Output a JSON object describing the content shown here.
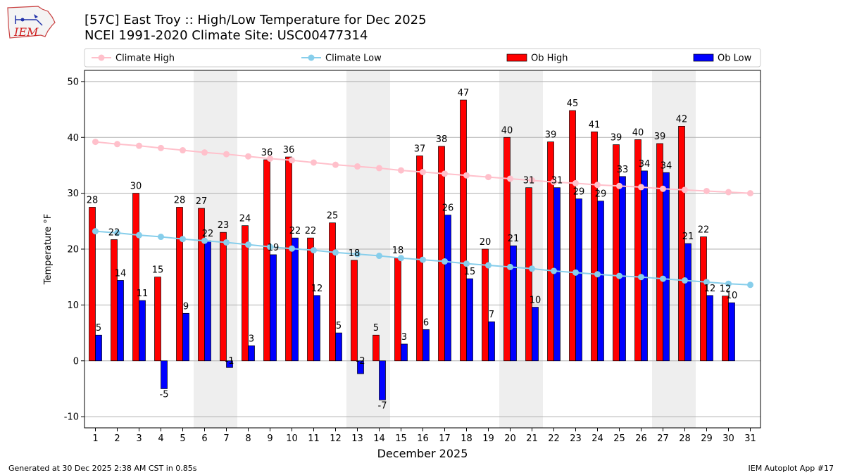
{
  "title_line1": "[57C] East Troy :: High/Low Temperature for Dec 2025",
  "title_line2": "NCEI 1991-2020 Climate Site: USC00477314",
  "logo_text": "IEM",
  "footer_left": "Generated at 30 Dec 2025 2:38 AM CST in 0.85s",
  "footer_right": "IEM Autoplot App #17",
  "colors": {
    "ob_high": "#ff0000",
    "ob_low": "#0000ff",
    "climate_high": "#ffc0cb",
    "climate_low": "#87ceeb",
    "weekend_shade": "#eeeeee",
    "grid": "#b0b0b0"
  },
  "chart_data": {
    "type": "bar",
    "xlabel": "December 2025",
    "ylabel": "Temperature °F",
    "ylim": [
      -12,
      52
    ],
    "yticks": [
      -10,
      0,
      10,
      20,
      30,
      40,
      50
    ],
    "grid": "horizontal",
    "legend_position": "top",
    "legend": [
      "Climate High",
      "Climate Low",
      "Ob High",
      "Ob Low"
    ],
    "shaded_days": [
      [
        6,
        7
      ],
      [
        13,
        14
      ],
      [
        20,
        21
      ],
      [
        27,
        28
      ]
    ],
    "days": [
      1,
      2,
      3,
      4,
      5,
      6,
      7,
      8,
      9,
      10,
      11,
      12,
      13,
      14,
      15,
      16,
      17,
      18,
      19,
      20,
      21,
      22,
      23,
      24,
      25,
      26,
      27,
      28,
      29,
      30,
      31
    ],
    "ob_high": [
      27.5,
      21.7,
      30,
      15,
      27.5,
      27.3,
      23,
      24.2,
      36,
      36.5,
      22,
      24.7,
      18,
      4.6,
      18.5,
      36.7,
      38.4,
      46.7,
      20,
      40,
      31,
      39.2,
      44.8,
      41,
      38.7,
      39.6,
      38.9,
      42,
      22.2,
      11.6,
      null
    ],
    "ob_high_labels": [
      "28",
      "22",
      "30",
      "15",
      "28",
      "27",
      "23",
      "24",
      "36",
      "36",
      "22",
      "25",
      "18",
      "5",
      "18",
      "37",
      "38",
      "47",
      "20",
      "40",
      "31",
      "39",
      "45",
      "41",
      "39",
      "40",
      "39",
      "42",
      "22",
      "12",
      ""
    ],
    "ob_low": [
      4.6,
      14.4,
      10.8,
      -5,
      8.5,
      21.5,
      -1.2,
      2.7,
      19,
      22,
      11.7,
      5,
      -2.3,
      -7,
      3,
      5.6,
      26.1,
      14.7,
      7,
      20.6,
      9.6,
      31,
      29,
      28.6,
      33,
      34,
      33.7,
      21,
      11.7,
      10.4,
      null
    ],
    "ob_low_labels": [
      "5",
      "14",
      "11",
      "-5",
      "9",
      "22",
      "-1",
      "3",
      "19",
      "22",
      "12",
      "5",
      "-2",
      "-7",
      "3",
      "6",
      "26",
      "15",
      "7",
      "21",
      "10",
      "31",
      "29",
      "29",
      "33",
      "34",
      "34",
      "21",
      "12",
      "10",
      ""
    ],
    "climate_high": [
      39.2,
      38.8,
      38.5,
      38.1,
      37.7,
      37.3,
      37.0,
      36.6,
      36.2,
      35.9,
      35.5,
      35.1,
      34.8,
      34.5,
      34.1,
      33.8,
      33.5,
      33.2,
      32.9,
      32.6,
      32.3,
      32.0,
      31.8,
      31.5,
      31.3,
      31.1,
      30.8,
      30.6,
      30.4,
      30.2,
      30.0
    ],
    "climate_low": [
      23.2,
      22.9,
      22.5,
      22.2,
      21.8,
      21.5,
      21.2,
      20.8,
      20.4,
      20.1,
      19.8,
      19.4,
      19.1,
      18.8,
      18.4,
      18.1,
      17.8,
      17.4,
      17.1,
      16.8,
      16.5,
      16.1,
      15.8,
      15.5,
      15.2,
      15.0,
      14.7,
      14.4,
      14.1,
      13.8,
      13.6
    ]
  }
}
